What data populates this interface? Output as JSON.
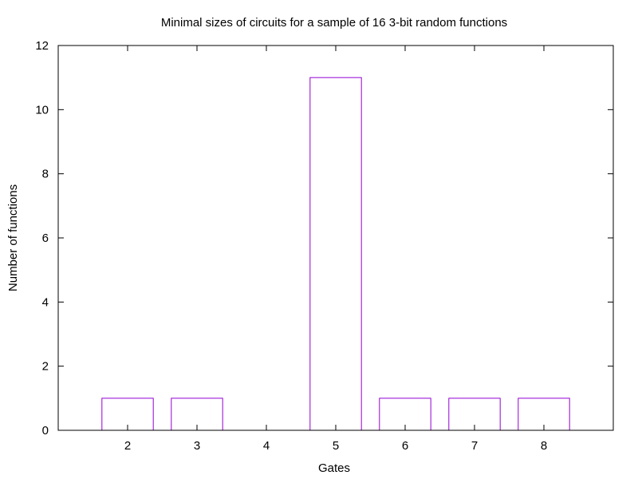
{
  "chart_data": {
    "type": "bar",
    "title": "Minimal sizes of circuits for a sample of 16 3-bit random functions",
    "xlabel": "Gates",
    "ylabel": "Number of functions",
    "categories": [
      "2",
      "3",
      "4",
      "5",
      "6",
      "7",
      "8"
    ],
    "x": [
      2,
      3,
      4,
      5,
      6,
      7,
      8
    ],
    "values": [
      1,
      1,
      0,
      11,
      1,
      1,
      1
    ],
    "xlim": [
      1,
      9
    ],
    "ylim": [
      0,
      12
    ],
    "yticks": [
      0,
      2,
      4,
      6,
      8,
      10,
      12
    ],
    "grid": false,
    "legend": "none",
    "bar_color": "#9400d3",
    "bar_fill": "none"
  }
}
